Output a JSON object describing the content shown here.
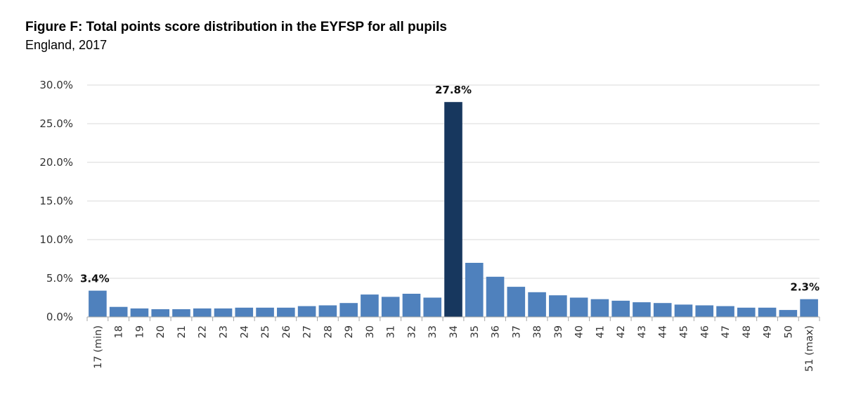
{
  "title": "Figure F: Total points score distribution in the EYFSP for all pupils",
  "subtitle": "England, 2017",
  "colors": {
    "bar": "#4f81bd",
    "highlight": "#17375e",
    "grid": "#d9d9d9",
    "axis": "#a6a6a6"
  },
  "chart_data": {
    "type": "bar",
    "categories": [
      "17 (min)",
      "18",
      "19",
      "20",
      "21",
      "22",
      "23",
      "24",
      "25",
      "26",
      "27",
      "28",
      "29",
      "30",
      "31",
      "32",
      "33",
      "34",
      "35",
      "36",
      "37",
      "38",
      "39",
      "40",
      "41",
      "42",
      "43",
      "44",
      "45",
      "46",
      "47",
      "48",
      "49",
      "50",
      "51 (max)"
    ],
    "values": [
      3.4,
      1.3,
      1.1,
      1.0,
      1.0,
      1.1,
      1.1,
      1.2,
      1.2,
      1.2,
      1.4,
      1.5,
      1.8,
      2.9,
      2.6,
      3.0,
      2.5,
      27.8,
      7.0,
      5.2,
      3.9,
      3.2,
      2.8,
      2.5,
      2.3,
      2.1,
      1.9,
      1.8,
      1.6,
      1.5,
      1.4,
      1.2,
      1.2,
      0.9,
      2.3
    ],
    "highlight_category": "34",
    "data_labels": [
      {
        "category": "17 (min)",
        "text": "3.4%"
      },
      {
        "category": "34",
        "text": "27.8%"
      },
      {
        "category": "51 (max)",
        "text": "2.3%"
      }
    ],
    "ylim": [
      0,
      30
    ],
    "yticks": [
      0,
      5,
      10,
      15,
      20,
      25,
      30
    ],
    "ytick_labels": [
      "0.0%",
      "5.0%",
      "10.0%",
      "15.0%",
      "20.0%",
      "25.0%",
      "30.0%"
    ],
    "xlabel": "",
    "ylabel": "",
    "grid": true
  }
}
